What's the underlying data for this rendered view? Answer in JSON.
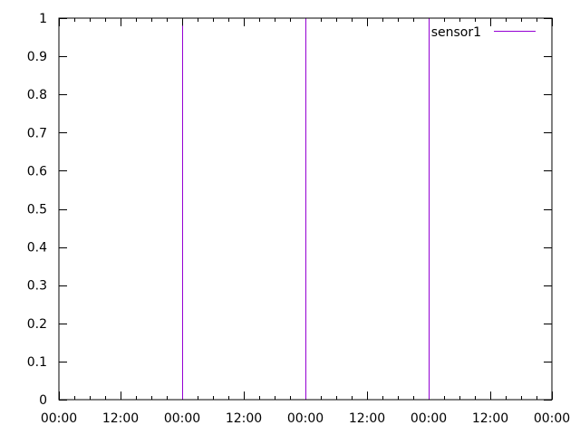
{
  "chart_data": {
    "type": "line",
    "title": "",
    "xlabel": "",
    "ylabel": "",
    "x_tick_labels": [
      "00:00",
      "12:00",
      "00:00",
      "12:00",
      "00:00",
      "12:00",
      "00:00",
      "12:00",
      "00:00"
    ],
    "x_tick_hours": [
      0,
      12,
      24,
      36,
      48,
      60,
      72,
      84,
      96
    ],
    "xlim_hours": [
      0,
      96
    ],
    "y_ticks": [
      0,
      0.1,
      0.2,
      0.3,
      0.4,
      0.5,
      0.6,
      0.7,
      0.8,
      0.9,
      1
    ],
    "y_tick_labels": [
      "0",
      "0.1",
      "0.2",
      "0.3",
      "0.4",
      "0.5",
      "0.6",
      "0.7",
      "0.8",
      "0.9",
      "1"
    ],
    "ylim": [
      0,
      1
    ],
    "grid": false,
    "legend_position": "top-right",
    "series": [
      {
        "name": "sensor1",
        "color": "#9400d3",
        "spikes": [
          {
            "x_hours": 24,
            "y": 0.98
          },
          {
            "x_hours": 48,
            "y": 1
          },
          {
            "x_hours": 72,
            "y": 1
          }
        ]
      }
    ]
  }
}
